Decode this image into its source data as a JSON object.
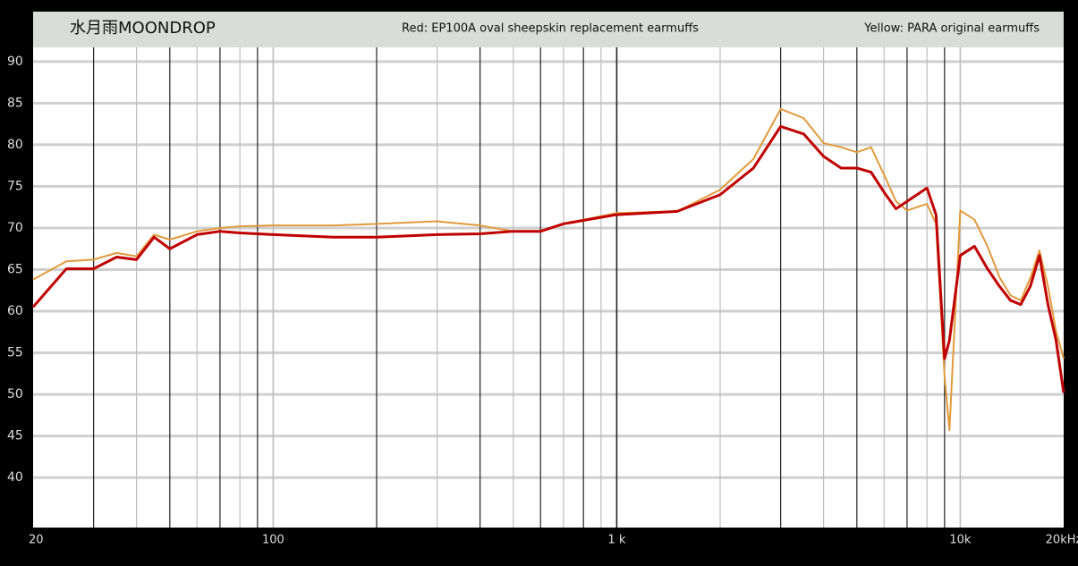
{
  "chart_data": {
    "type": "line",
    "title": "水月雨MOONDROP",
    "annotations": [
      "Red: EP100A oval sheepskin replacement earmuffs",
      "Yellow: PARA original earmuffs"
    ],
    "xscale": "log",
    "xlim": [
      20,
      20000
    ],
    "ylim": [
      34,
      96
    ],
    "xticks": [
      20,
      100,
      {
        "value": 1000,
        "label": "1 k"
      },
      {
        "value": 10000,
        "label": "10k"
      },
      {
        "value": 20000,
        "label": "20kHz"
      }
    ],
    "xgrid": [
      30,
      40,
      50,
      60,
      70,
      80,
      90,
      100,
      200,
      300,
      400,
      500,
      600,
      700,
      800,
      900,
      1000,
      2000,
      3000,
      4000,
      5000,
      6000,
      7000,
      8000,
      9000,
      10000
    ],
    "yticks": [
      40,
      45,
      50,
      55,
      60,
      65,
      70,
      75,
      80,
      85,
      90
    ],
    "grid": true,
    "x": [
      20,
      25,
      30,
      35,
      40,
      45,
      50,
      60,
      70,
      80,
      100,
      150,
      200,
      300,
      400,
      500,
      600,
      700,
      1000,
      1500,
      2000,
      2500,
      3000,
      3500,
      4000,
      4500,
      5000,
      5500,
      6000,
      6500,
      7000,
      8000,
      8500,
      9000,
      9300,
      10000,
      11000,
      12000,
      13000,
      14000,
      15000,
      16000,
      17000,
      18000,
      19000,
      20000
    ],
    "series": [
      {
        "name": "PARA original earmuffs",
        "color": "#e09a3c",
        "values": [
          63.8,
          66,
          66.2,
          67,
          66.6,
          69.2,
          68.6,
          69.6,
          70,
          70.2,
          70.3,
          70.3,
          70.5,
          70.8,
          70.3,
          69.6,
          69.6,
          70.5,
          71.8,
          72,
          74.6,
          78.3,
          84.3,
          83.2,
          80.2,
          79.7,
          79.1,
          79.7,
          76.4,
          73.2,
          72.1,
          72.9,
          70.5,
          52.2,
          45.7,
          72.1,
          71,
          67.8,
          64.1,
          61.9,
          61.3,
          64,
          67.3,
          63,
          57.6,
          54.3
        ]
      },
      {
        "name": "EP100A oval sheepskin replacement earmuffs",
        "color": "#c00000",
        "values": [
          60.5,
          65.1,
          65.1,
          66.5,
          66.2,
          68.9,
          67.5,
          69.2,
          69.6,
          69.4,
          69.2,
          68.9,
          68.9,
          69.2,
          69.3,
          69.6,
          69.6,
          70.5,
          71.6,
          72,
          74,
          77.2,
          82.2,
          81.3,
          78.6,
          77.2,
          77.2,
          76.7,
          74.3,
          72.3,
          73.2,
          74.8,
          71.6,
          54.3,
          56.5,
          66.7,
          67.8,
          65.1,
          63,
          61.3,
          60.8,
          63,
          66.7,
          60.8,
          56.5,
          50.2
        ]
      }
    ]
  }
}
